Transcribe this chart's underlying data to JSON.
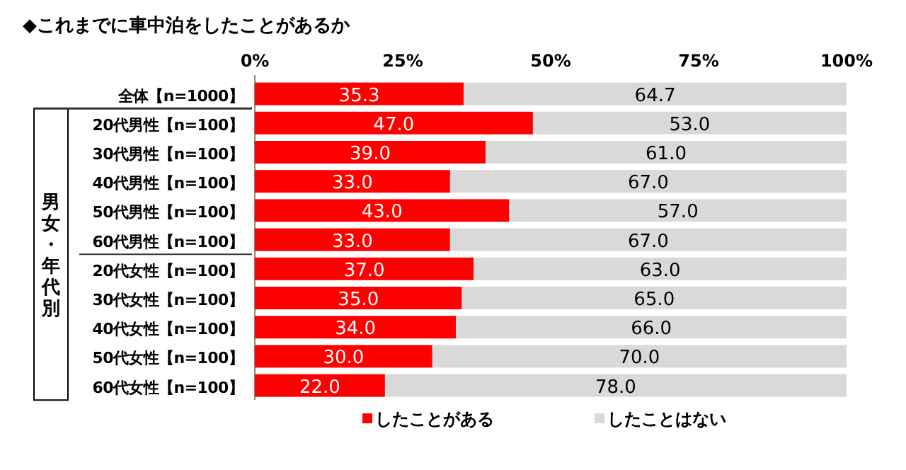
{
  "chart_data": {
    "type": "bar",
    "orientation": "horizontal",
    "stacked": true,
    "title": "◆これまでに車中泊をしたことがあるか",
    "categories": [
      "全体【n=1000】",
      "20代男性【n=100】",
      "30代男性【n=100】",
      "40代男性【n=100】",
      "50代男性【n=100】",
      "60代男性【n=100】",
      "20代女性【n=100】",
      "30代女性【n=100】",
      "40代女性【n=100】",
      "50代女性【n=100】",
      "60代女性【n=100】"
    ],
    "series": [
      {
        "name": "したことがある",
        "color": "#ff0000",
        "values": [
          35.3,
          47.0,
          39.0,
          33.0,
          43.0,
          33.0,
          37.0,
          35.0,
          34.0,
          30.0,
          22.0
        ],
        "value_labels": [
          "35.3",
          "47.0",
          "39.0",
          "33.0",
          "43.0",
          "33.0",
          "37.0",
          "35.0",
          "34.0",
          "30.0",
          "22.0"
        ]
      },
      {
        "name": "したことはない",
        "color": "#d9d9d9",
        "values": [
          64.7,
          53.0,
          61.0,
          67.0,
          57.0,
          67.0,
          63.0,
          65.0,
          66.0,
          70.0,
          78.0
        ],
        "value_labels": [
          "64.7",
          "53.0",
          "61.0",
          "67.0",
          "57.0",
          "67.0",
          "63.0",
          "65.0",
          "66.0",
          "70.0",
          "78.0"
        ]
      }
    ],
    "xlim": [
      0,
      100
    ],
    "xticks": [
      {
        "value": 0,
        "label": "0%"
      },
      {
        "value": 25,
        "label": "25%"
      },
      {
        "value": 50,
        "label": "50%"
      },
      {
        "value": 75,
        "label": "75%"
      },
      {
        "value": 100,
        "label": "100%"
      }
    ],
    "legend": "bottom",
    "annotations": [
      "男女・年代別"
    ]
  }
}
